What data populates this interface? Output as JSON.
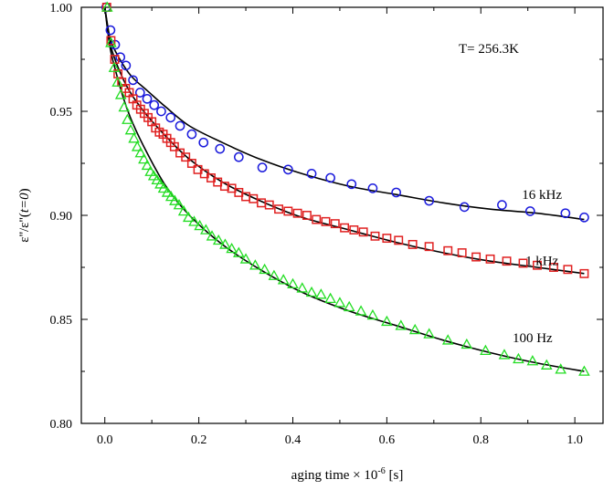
{
  "chart_data": {
    "type": "scatter",
    "annotation": "T= 256.3K",
    "xlabel_prefix": "aging time",
    "xlabel_times": "×",
    "xlabel_base": "10",
    "xlabel_exp": "-6",
    "xlabel_unit": "[s]",
    "ylabel_left": "ε''/ε''(",
    "ylabel_arg": "t=0",
    "ylabel_right": ")",
    "xlim": [
      -0.05,
      1.06
    ],
    "ylim": [
      0.8,
      1.0
    ],
    "x_ticks": [
      0.0,
      0.2,
      0.4,
      0.6,
      0.8,
      1.0
    ],
    "x_tick_labels": [
      "0.0",
      "0.2",
      "0.4",
      "0.6",
      "0.8",
      "1.0"
    ],
    "y_ticks": [
      0.8,
      0.85,
      0.9,
      0.95,
      1.0
    ],
    "y_tick_labels": [
      "0.80",
      "0.85",
      "0.90",
      "0.95",
      "1.00"
    ],
    "series": [
      {
        "name": "16 kHz",
        "marker": "circle",
        "color": "#1a1adc",
        "x": [
          0.003,
          0.012,
          0.022,
          0.033,
          0.045,
          0.06,
          0.075,
          0.09,
          0.105,
          0.12,
          0.14,
          0.16,
          0.185,
          0.21,
          0.245,
          0.285,
          0.335,
          0.39,
          0.44,
          0.48,
          0.525,
          0.57,
          0.62,
          0.69,
          0.765,
          0.845,
          0.905,
          0.98,
          1.02
        ],
        "y": [
          1.0,
          0.989,
          0.982,
          0.976,
          0.972,
          0.965,
          0.959,
          0.956,
          0.953,
          0.95,
          0.947,
          0.943,
          0.939,
          0.935,
          0.932,
          0.928,
          0.923,
          0.922,
          0.92,
          0.918,
          0.915,
          0.913,
          0.911,
          0.907,
          0.904,
          0.905,
          0.902,
          0.901,
          0.899
        ],
        "fit": [
          [
            0.0,
            1.0
          ],
          [
            0.01,
            0.986
          ],
          [
            0.02,
            0.98
          ],
          [
            0.04,
            0.972
          ],
          [
            0.06,
            0.966
          ],
          [
            0.09,
            0.96
          ],
          [
            0.13,
            0.952
          ],
          [
            0.18,
            0.943
          ],
          [
            0.25,
            0.935
          ],
          [
            0.33,
            0.927
          ],
          [
            0.42,
            0.92
          ],
          [
            0.52,
            0.914
          ],
          [
            0.62,
            0.91
          ],
          [
            0.72,
            0.906
          ],
          [
            0.82,
            0.903
          ],
          [
            0.92,
            0.901
          ],
          [
            1.02,
            0.898
          ]
        ],
        "label_at": [
          0.93,
          0.908
        ]
      },
      {
        "name": "1 kHz",
        "marker": "square",
        "color": "#e02020",
        "x": [
          0.004,
          0.013,
          0.021,
          0.028,
          0.036,
          0.044,
          0.052,
          0.06,
          0.068,
          0.076,
          0.084,
          0.092,
          0.1,
          0.108,
          0.116,
          0.124,
          0.132,
          0.14,
          0.148,
          0.16,
          0.172,
          0.185,
          0.198,
          0.212,
          0.226,
          0.24,
          0.255,
          0.27,
          0.285,
          0.3,
          0.316,
          0.333,
          0.35,
          0.37,
          0.39,
          0.41,
          0.43,
          0.45,
          0.47,
          0.49,
          0.51,
          0.53,
          0.55,
          0.575,
          0.6,
          0.625,
          0.655,
          0.69,
          0.73,
          0.76,
          0.79,
          0.82,
          0.855,
          0.89,
          0.92,
          0.955,
          0.985,
          1.02
        ],
        "y": [
          1.0,
          0.984,
          0.975,
          0.968,
          0.964,
          0.961,
          0.959,
          0.956,
          0.953,
          0.951,
          0.949,
          0.947,
          0.945,
          0.942,
          0.94,
          0.939,
          0.937,
          0.935,
          0.933,
          0.93,
          0.928,
          0.925,
          0.922,
          0.92,
          0.918,
          0.916,
          0.914,
          0.913,
          0.911,
          0.909,
          0.908,
          0.906,
          0.905,
          0.903,
          0.902,
          0.901,
          0.9,
          0.898,
          0.897,
          0.896,
          0.894,
          0.893,
          0.892,
          0.89,
          0.889,
          0.888,
          0.886,
          0.885,
          0.883,
          0.882,
          0.88,
          0.879,
          0.878,
          0.877,
          0.876,
          0.875,
          0.874,
          0.872
        ],
        "fit": [
          [
            0.0,
            1.0
          ],
          [
            0.01,
            0.984
          ],
          [
            0.02,
            0.976
          ],
          [
            0.04,
            0.965
          ],
          [
            0.06,
            0.957
          ],
          [
            0.09,
            0.948
          ],
          [
            0.13,
            0.938
          ],
          [
            0.18,
            0.927
          ],
          [
            0.25,
            0.916
          ],
          [
            0.33,
            0.907
          ],
          [
            0.42,
            0.899
          ],
          [
            0.52,
            0.893
          ],
          [
            0.62,
            0.887
          ],
          [
            0.72,
            0.882
          ],
          [
            0.82,
            0.878
          ],
          [
            0.92,
            0.875
          ],
          [
            1.02,
            0.872
          ]
        ],
        "label_at": [
          0.93,
          0.876
        ]
      },
      {
        "name": "100 Hz",
        "marker": "triangle",
        "color": "#22dd22",
        "x": [
          0.005,
          0.013,
          0.02,
          0.027,
          0.034,
          0.041,
          0.048,
          0.055,
          0.062,
          0.069,
          0.076,
          0.083,
          0.09,
          0.097,
          0.104,
          0.111,
          0.118,
          0.125,
          0.133,
          0.141,
          0.149,
          0.158,
          0.168,
          0.178,
          0.19,
          0.202,
          0.215,
          0.228,
          0.242,
          0.256,
          0.27,
          0.285,
          0.3,
          0.32,
          0.34,
          0.36,
          0.38,
          0.4,
          0.42,
          0.44,
          0.46,
          0.48,
          0.5,
          0.52,
          0.545,
          0.57,
          0.6,
          0.63,
          0.66,
          0.69,
          0.73,
          0.77,
          0.81,
          0.85,
          0.88,
          0.91,
          0.94,
          0.97,
          1.02
        ],
        "y": [
          1.0,
          0.983,
          0.971,
          0.964,
          0.958,
          0.952,
          0.946,
          0.941,
          0.937,
          0.933,
          0.93,
          0.927,
          0.924,
          0.921,
          0.919,
          0.917,
          0.915,
          0.913,
          0.911,
          0.909,
          0.907,
          0.905,
          0.902,
          0.899,
          0.897,
          0.895,
          0.893,
          0.89,
          0.888,
          0.886,
          0.884,
          0.882,
          0.879,
          0.876,
          0.874,
          0.871,
          0.869,
          0.867,
          0.865,
          0.863,
          0.862,
          0.86,
          0.858,
          0.856,
          0.854,
          0.852,
          0.849,
          0.847,
          0.845,
          0.843,
          0.84,
          0.838,
          0.835,
          0.833,
          0.831,
          0.83,
          0.828,
          0.826,
          0.825
        ],
        "fit": [
          [
            0.0,
            1.0
          ],
          [
            0.01,
            0.982
          ],
          [
            0.02,
            0.972
          ],
          [
            0.04,
            0.956
          ],
          [
            0.06,
            0.944
          ],
          [
            0.09,
            0.93
          ],
          [
            0.13,
            0.914
          ],
          [
            0.18,
            0.9
          ],
          [
            0.25,
            0.886
          ],
          [
            0.33,
            0.874
          ],
          [
            0.42,
            0.863
          ],
          [
            0.52,
            0.854
          ],
          [
            0.62,
            0.847
          ],
          [
            0.72,
            0.84
          ],
          [
            0.82,
            0.834
          ],
          [
            0.92,
            0.829
          ],
          [
            1.02,
            0.825
          ]
        ],
        "label_at": [
          0.91,
          0.839
        ]
      }
    ]
  }
}
